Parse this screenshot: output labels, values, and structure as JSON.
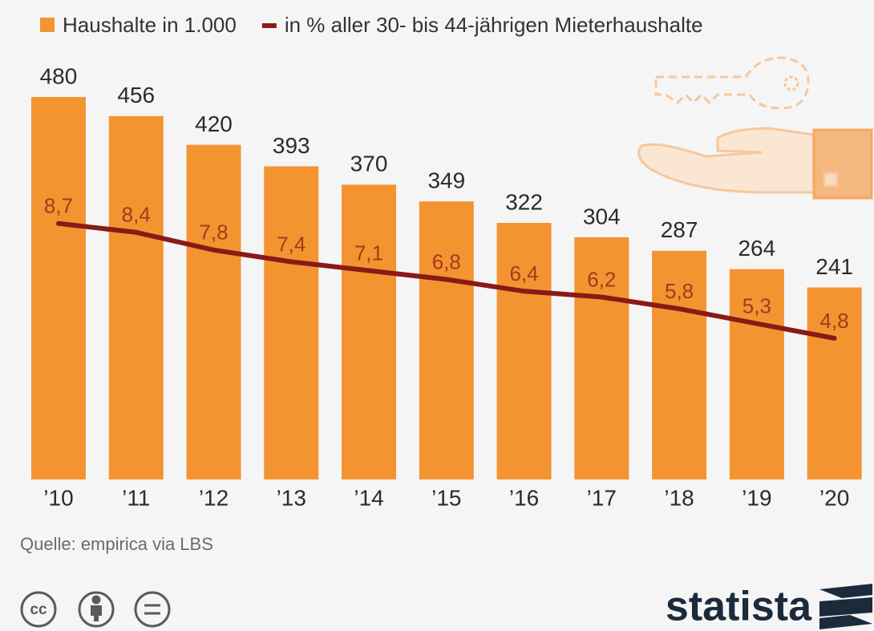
{
  "chart_data": {
    "type": "bar",
    "categories": [
      "’10",
      "’11",
      "’12",
      "’13",
      "’14",
      "’15",
      "’16",
      "’17",
      "’18",
      "’19",
      "’20"
    ],
    "series": [
      {
        "name": "Haushalte in 1.000",
        "color": "#f39431",
        "values": [
          480,
          456,
          420,
          393,
          370,
          349,
          322,
          304,
          287,
          264,
          241
        ]
      },
      {
        "name": "in % aller 30- bis 44-jährigen Mieterhaushalte",
        "type": "line",
        "axis": "y2",
        "color": "#8a1a16",
        "values": [
          8.7,
          8.4,
          7.8,
          7.4,
          7.1,
          6.8,
          6.4,
          6.2,
          5.8,
          5.3,
          4.8
        ],
        "value_labels": [
          "8,7",
          "8,4",
          "7,8",
          "7,4",
          "7,1",
          "6,8",
          "6,4",
          "6,2",
          "5,8",
          "5,3",
          "4,8"
        ]
      }
    ],
    "ylim": [
      0,
      480
    ],
    "y2lim": [
      0,
      13
    ],
    "legend": "top",
    "source": "Quelle: empirica via LBS"
  },
  "footer": {
    "license": "cc",
    "brand": "statista"
  }
}
